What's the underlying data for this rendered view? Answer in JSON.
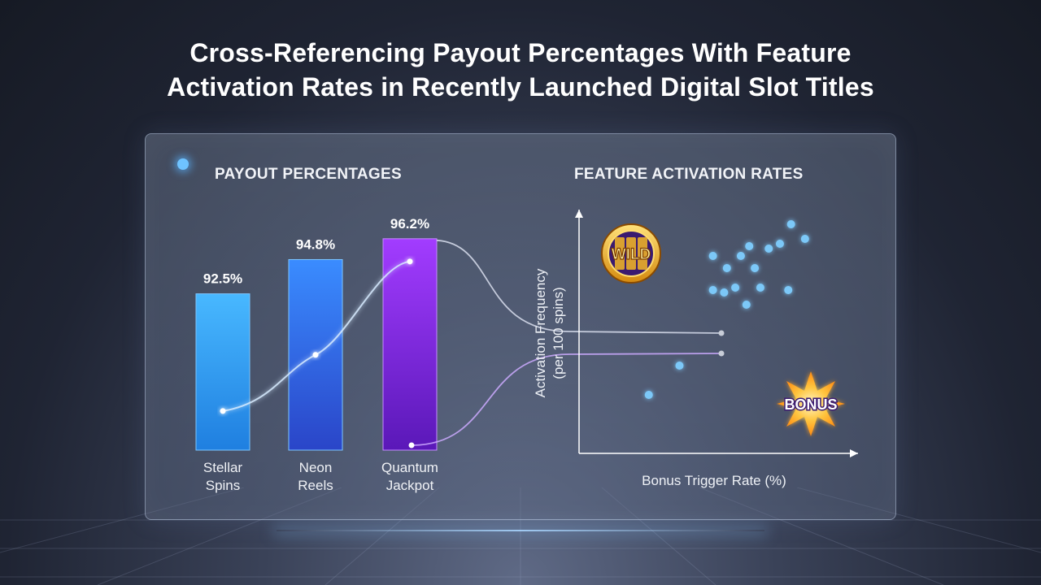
{
  "title_line1": "Cross-Referencing Payout Percentages With Feature",
  "title_line2": "Activation Rates in Recently Launched Digital Slot Titles",
  "left_title": "PAYOUT PERCENTAGES",
  "right_title": "FEATURE ACTIVATION RATES",
  "icons": {
    "wild": {
      "name": "wild-slot-badge-icon",
      "text": "WILD"
    },
    "bonus": {
      "name": "bonus-starburst-icon",
      "text": "BONUS"
    }
  },
  "colors": {
    "stellar": "#3aa8f5",
    "neon": "#2f68e6",
    "quantum": "#8b2ff0",
    "scatter": "#7cc8f8"
  },
  "chart_data": [
    {
      "type": "bar",
      "title": "PAYOUT PERCENTAGES",
      "categories": [
        [
          "Stellar",
          "Spins"
        ],
        [
          "Neon",
          "Reels"
        ],
        [
          "Quantum",
          "Jackpot"
        ]
      ],
      "values": [
        92.5,
        94.8,
        96.2
      ],
      "value_labels": [
        "92.5%",
        "94.8%",
        "96.2%"
      ],
      "ylim": [
        82,
        97.5
      ],
      "grid": false
    },
    {
      "type": "scatter",
      "title": "FEATURE ACTIVATION RATES",
      "xlabel": "Bonus Trigger Rate (%)",
      "ylabel_line1": "Activation Frequency",
      "ylabel_line2": "(per 100 spins)",
      "xlim": [
        0,
        10
      ],
      "ylim": [
        0,
        10
      ],
      "grid": false,
      "points": [
        [
          2.5,
          2.4
        ],
        [
          3.6,
          3.6
        ],
        [
          4.8,
          8.1
        ],
        [
          5.3,
          7.6
        ],
        [
          5.8,
          8.1
        ],
        [
          6.3,
          7.6
        ],
        [
          6.8,
          8.4
        ],
        [
          4.8,
          6.7
        ],
        [
          5.2,
          6.6
        ],
        [
          5.6,
          6.8
        ],
        [
          6.0,
          6.1
        ],
        [
          6.5,
          6.8
        ],
        [
          7.5,
          6.7
        ],
        [
          6.1,
          8.5
        ],
        [
          7.2,
          8.6
        ],
        [
          7.6,
          9.4
        ],
        [
          8.1,
          8.8
        ]
      ]
    }
  ]
}
